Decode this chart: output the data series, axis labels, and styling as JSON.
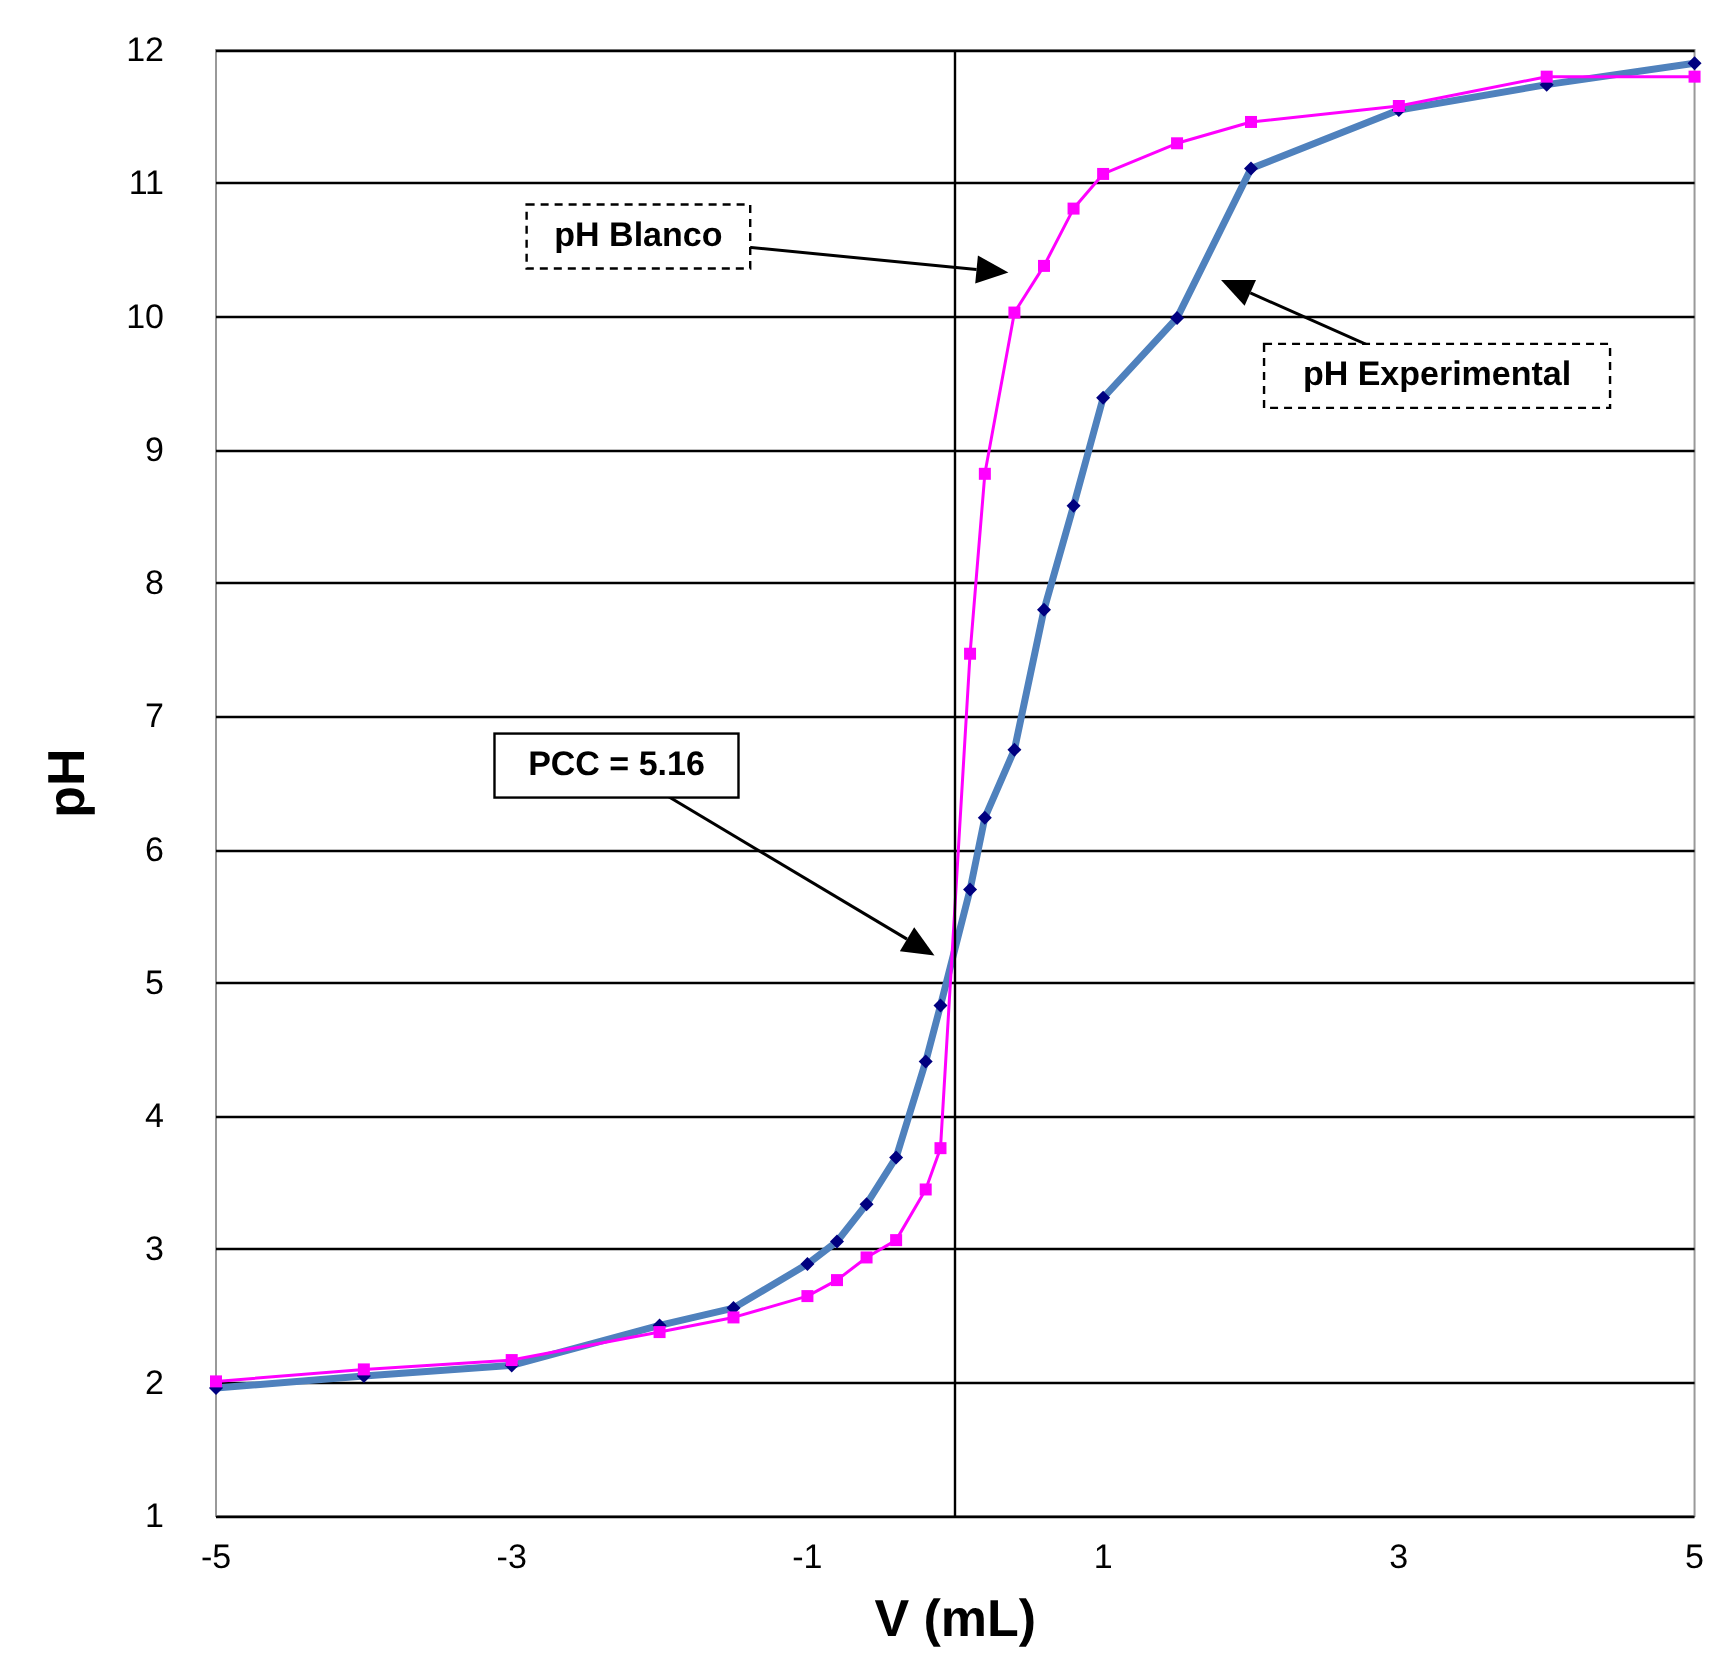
{
  "chart_data": {
    "type": "line",
    "xlabel": "V (mL)",
    "ylabel": "pH",
    "xlim": [
      -5,
      5
    ],
    "xticks": [
      -5,
      -3,
      -1,
      1,
      3,
      5
    ],
    "ylim": [
      1,
      12
    ],
    "yticks": [
      1,
      2,
      3,
      4,
      5,
      6,
      7,
      8,
      9,
      10,
      11,
      12
    ],
    "grid": "y",
    "ref_lines": [
      {
        "axis": "x",
        "value": 0,
        "color": "#000000"
      }
    ],
    "annotations": [
      "pH Blanco",
      "pH Experimental",
      "PCC = 5.16"
    ],
    "series": [
      {
        "color": "#4f81bd",
        "marker": "diamond",
        "x": [
          -5,
          -4,
          -3,
          -2,
          -1.5,
          -1,
          -0.8,
          -0.6,
          -0.4,
          -0.2,
          -0.1,
          0.1,
          0.2,
          0.4,
          0.6,
          0.8,
          1,
          1.5,
          2,
          3,
          4,
          5
        ],
        "values": [
          1.96,
          2.05,
          2.13,
          2.43,
          2.56,
          2.89,
          3.06,
          3.34,
          3.69,
          4.41,
          4.83,
          5.7,
          6.24,
          6.75,
          7.8,
          8.58,
          9.39,
          9.99,
          11.11,
          11.55,
          11.74,
          11.9
        ]
      },
      {
        "color": "#ff00ff",
        "marker": "square",
        "x": [
          -5,
          -4,
          -3,
          -2,
          -1.5,
          -1,
          -0.8,
          -0.6,
          -0.4,
          -0.2,
          -0.1,
          0.1,
          0.2,
          0.4,
          0.6,
          0.8,
          1,
          1.5,
          2,
          3,
          4,
          5
        ],
        "values": [
          2.01,
          2.1,
          2.17,
          2.38,
          2.49,
          2.65,
          2.77,
          2.94,
          3.07,
          3.45,
          3.76,
          7.47,
          8.82,
          10.03,
          10.38,
          10.81,
          11.07,
          11.3,
          11.46,
          11.58,
          11.8,
          11.8
        ]
      }
    ]
  }
}
